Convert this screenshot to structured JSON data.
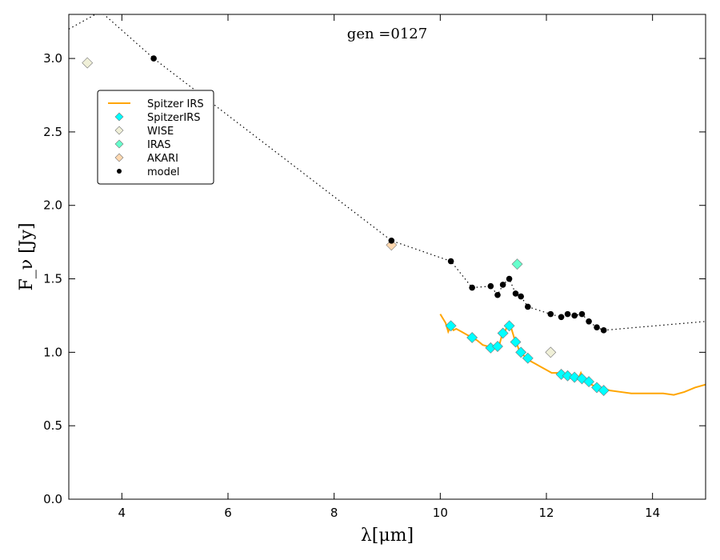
{
  "chart_data": {
    "type": "scatter",
    "title": "gen =0127",
    "xlabel": "λ[μm]",
    "ylabel": "F_ν [Jy]",
    "xlim": [
      3,
      15
    ],
    "ylim": [
      0,
      3.3
    ],
    "xticks": [
      4,
      6,
      8,
      10,
      12,
      14
    ],
    "xtick_labels": [
      "4",
      "6",
      "8",
      "10",
      "12",
      "14"
    ],
    "yticks": [
      0,
      0.5,
      1.0,
      1.5,
      2.0,
      2.5,
      3.0
    ],
    "ytick_labels": [
      "0.0",
      "0.5",
      "1.0",
      "1.5",
      "2.0",
      "2.5",
      "3.0"
    ],
    "legend_position": "upper-left",
    "colors": {
      "spitzer_line": "#ffa500",
      "spitzer_points": "#00ffff",
      "wise": "#f0f0d8",
      "iras": "#66ffcc",
      "akari": "#ffd8b0",
      "model": "#000000"
    },
    "series": [
      {
        "name": "Spitzer IRS",
        "kind": "line",
        "x": [
          10.0,
          10.1,
          10.15,
          10.2,
          10.25,
          10.3,
          10.4,
          10.5,
          10.6,
          10.7,
          10.8,
          10.9,
          11.0,
          11.05,
          11.1,
          11.15,
          11.2,
          11.25,
          11.3,
          11.35,
          11.4,
          11.45,
          11.5,
          11.6,
          11.7,
          11.8,
          11.9,
          12.0,
          12.1,
          12.2,
          12.3,
          12.4,
          12.5,
          12.6,
          12.65,
          12.7,
          12.75,
          12.8,
          12.9,
          13.0,
          13.1,
          13.2,
          13.4,
          13.6,
          13.8,
          14.0,
          14.2,
          14.4,
          14.6,
          14.8,
          15.0
        ],
        "y": [
          1.26,
          1.2,
          1.14,
          1.18,
          1.15,
          1.16,
          1.14,
          1.12,
          1.1,
          1.08,
          1.05,
          1.04,
          1.02,
          1.05,
          1.03,
          1.1,
          1.12,
          1.17,
          1.2,
          1.15,
          1.09,
          1.05,
          1.0,
          0.97,
          0.94,
          0.92,
          0.9,
          0.88,
          0.86,
          0.86,
          0.85,
          0.84,
          0.83,
          0.82,
          0.86,
          0.82,
          0.81,
          0.79,
          0.77,
          0.76,
          0.75,
          0.74,
          0.73,
          0.72,
          0.72,
          0.72,
          0.72,
          0.71,
          0.73,
          0.76,
          0.78
        ]
      },
      {
        "name": "SpitzerIRS",
        "kind": "diamond",
        "x": [
          10.2,
          10.6,
          10.95,
          11.08,
          11.18,
          11.3,
          11.42,
          11.52,
          11.65,
          12.28,
          12.4,
          12.53,
          12.67,
          12.8,
          12.95,
          13.08
        ],
        "y": [
          1.18,
          1.1,
          1.03,
          1.04,
          1.13,
          1.18,
          1.07,
          1.0,
          0.96,
          0.85,
          0.84,
          0.83,
          0.82,
          0.8,
          0.76,
          0.74
        ]
      },
      {
        "name": "WISE",
        "kind": "diamond",
        "x": [
          3.35,
          12.08
        ],
        "y": [
          2.97,
          1.0
        ]
      },
      {
        "name": "IRAS",
        "kind": "diamond",
        "x": [
          11.45
        ],
        "y": [
          1.6
        ]
      },
      {
        "name": "AKARI",
        "kind": "diamond",
        "x": [
          9.08
        ],
        "y": [
          1.73
        ]
      },
      {
        "name": "model",
        "kind": "dot",
        "x": [
          4.6,
          9.08,
          10.2,
          10.6,
          10.95,
          11.08,
          11.18,
          11.3,
          11.42,
          11.52,
          11.65,
          12.08,
          12.28,
          12.4,
          12.53,
          12.67,
          12.8,
          12.95,
          13.08
        ],
        "y": [
          3.0,
          1.76,
          1.62,
          1.44,
          1.45,
          1.39,
          1.46,
          1.5,
          1.4,
          1.38,
          1.31,
          1.26,
          1.24,
          1.26,
          1.25,
          1.26,
          1.21,
          1.17,
          1.15
        ]
      },
      {
        "name": "model (dotted)",
        "kind": "dotted-line",
        "x": [
          3.0,
          3.6,
          4.6,
          9.08,
          10.2,
          10.6,
          10.95,
          11.08,
          11.18,
          11.3,
          11.42,
          11.52,
          11.65,
          12.08,
          12.28,
          12.4,
          12.53,
          12.67,
          12.8,
          12.95,
          13.08,
          15.0
        ],
        "y": [
          3.2,
          3.32,
          3.0,
          1.76,
          1.62,
          1.44,
          1.45,
          1.39,
          1.46,
          1.5,
          1.4,
          1.38,
          1.31,
          1.26,
          1.24,
          1.26,
          1.25,
          1.26,
          1.21,
          1.17,
          1.15,
          1.21
        ]
      }
    ],
    "legend": [
      "Spitzer IRS",
      "SpitzerIRS",
      "WISE",
      "IRAS",
      "AKARI",
      "model"
    ]
  }
}
